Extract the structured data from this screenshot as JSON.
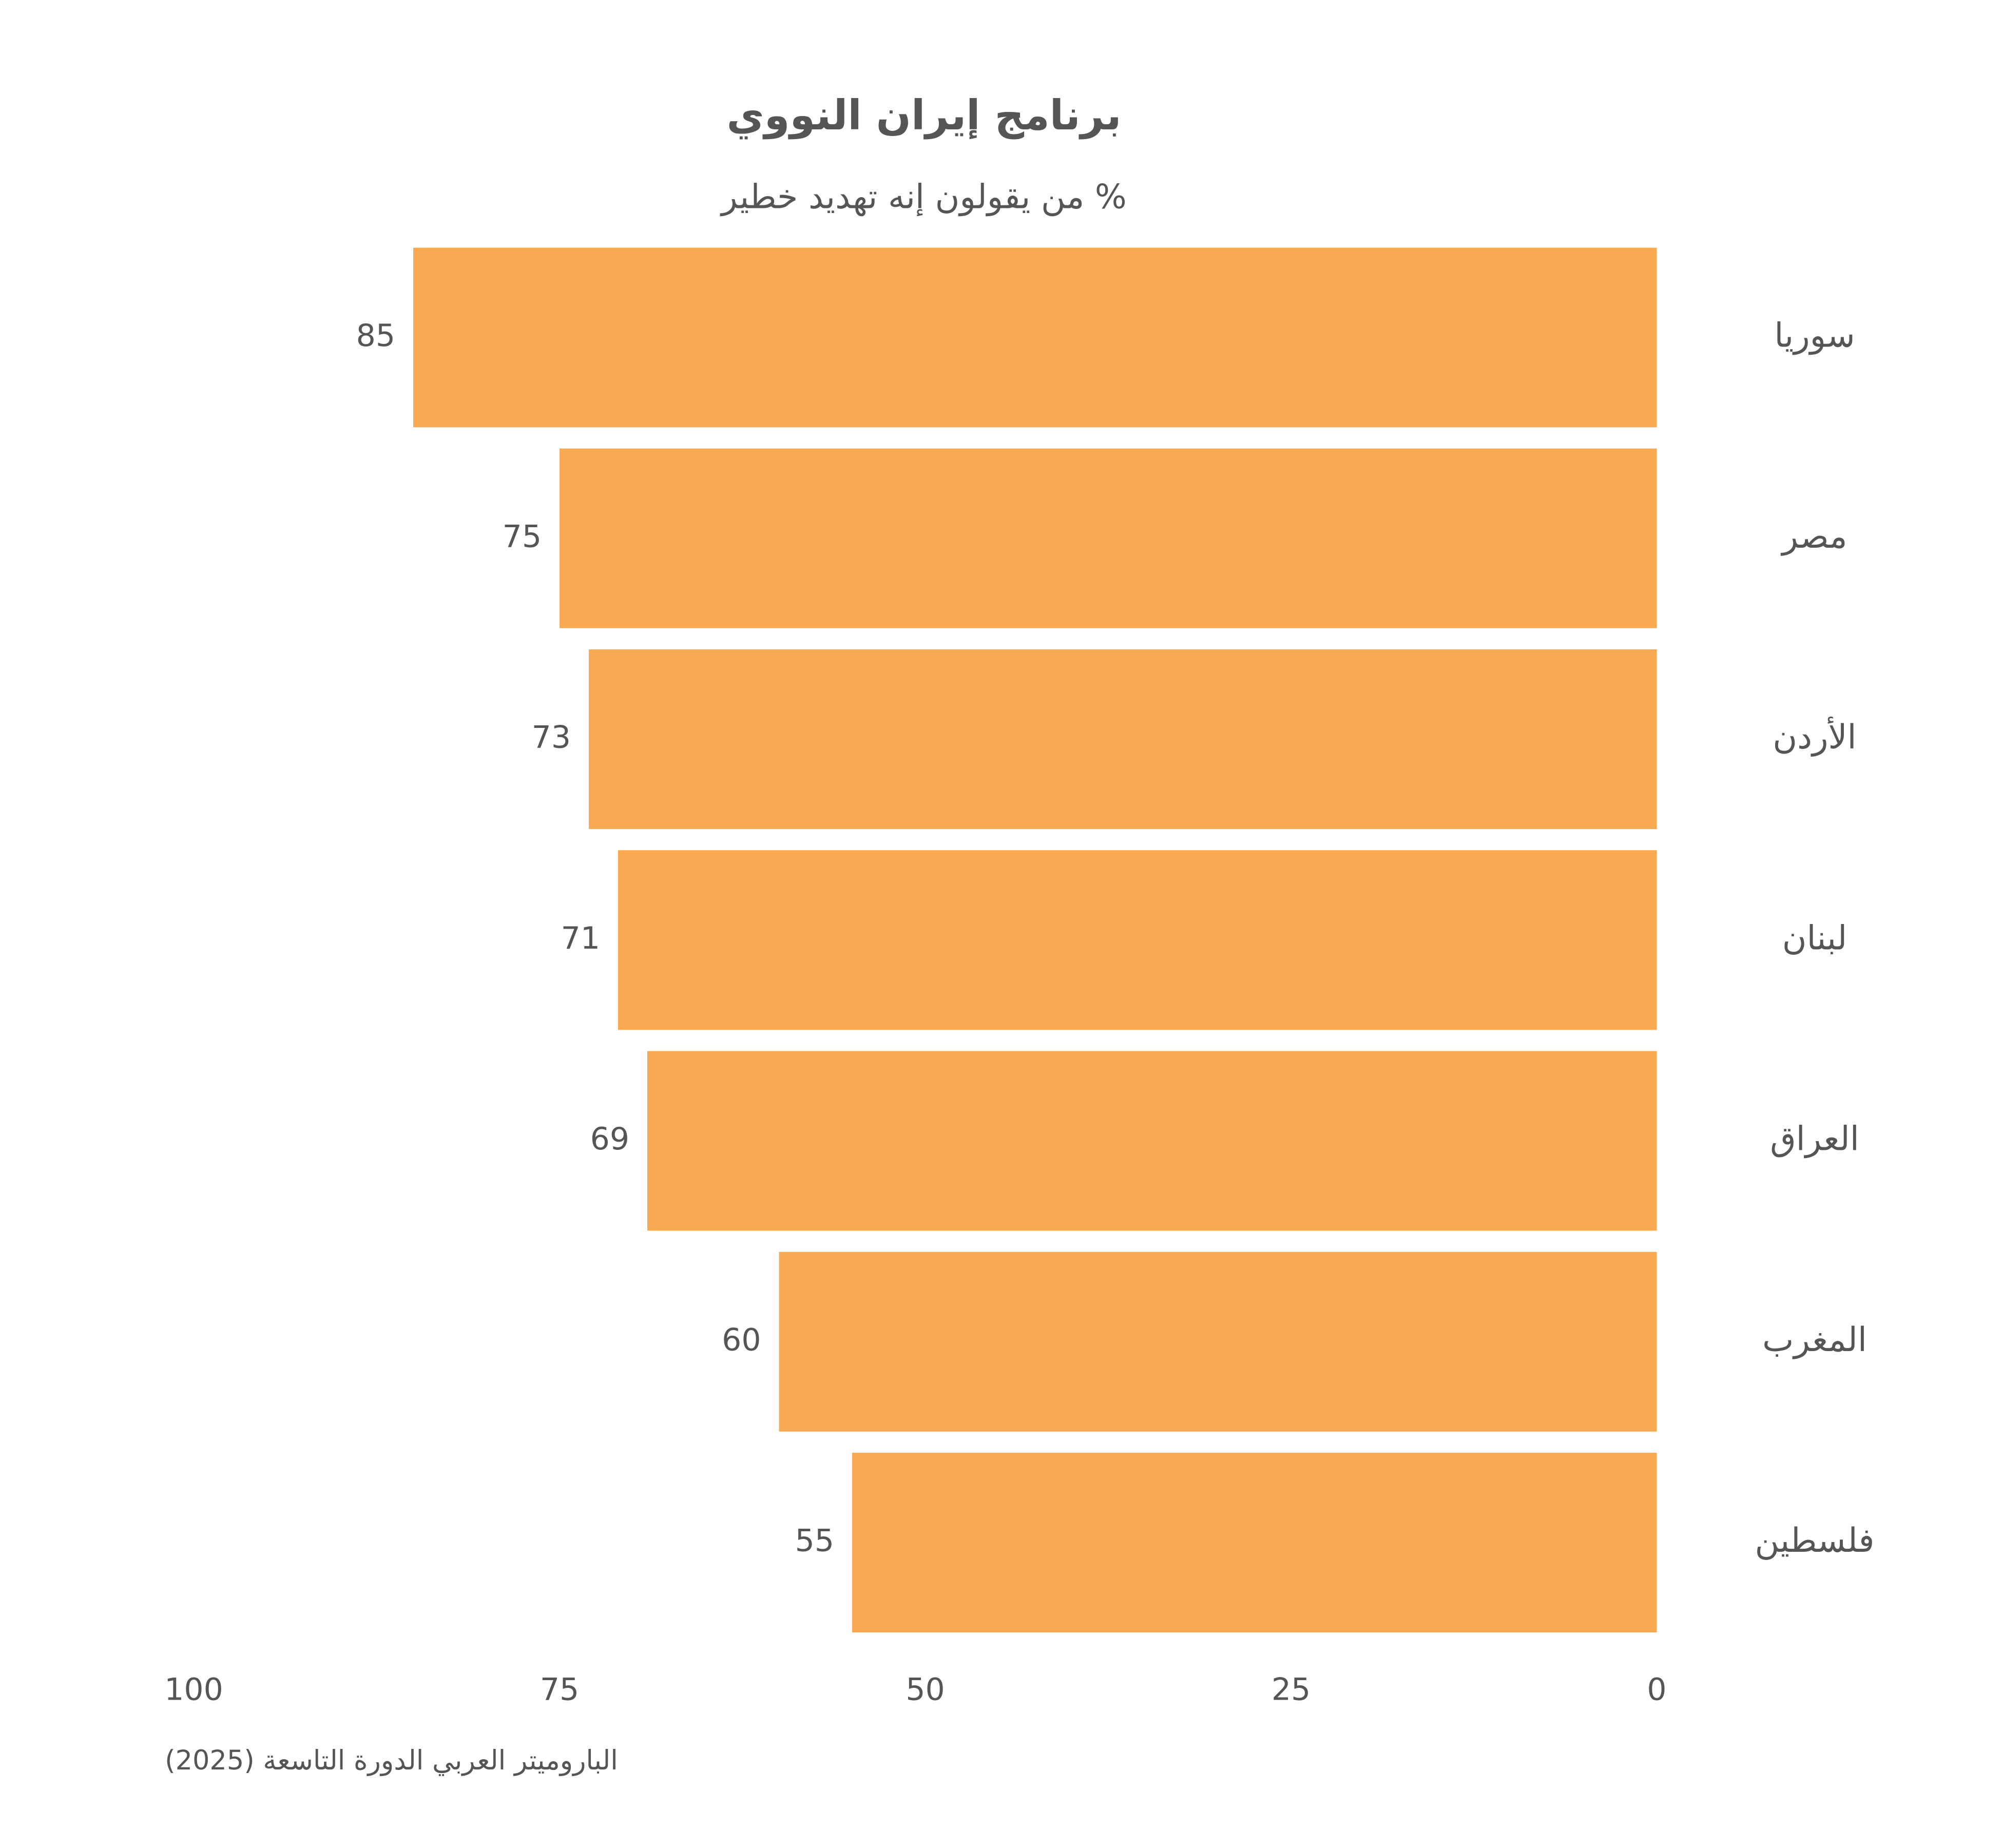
{
  "chart_data": {
    "type": "bar",
    "orientation": "horizontal",
    "title": "برنامج إيران النووي",
    "subtitle": "% من يقولون إنه تهديد خطير",
    "source": "الباروميتر العربي الدورة التاسعة (2025)",
    "categories": [
      "سوريا",
      "مصر",
      "الأردن",
      "لبنان",
      "العراق",
      "المغرب",
      "فلسطين"
    ],
    "values": [
      85,
      75,
      73,
      71,
      69,
      60,
      55
    ],
    "color": "#f9a952",
    "xlim": [
      100,
      0
    ],
    "xticks": [
      100,
      75,
      50,
      25,
      0
    ],
    "grid": false
  }
}
